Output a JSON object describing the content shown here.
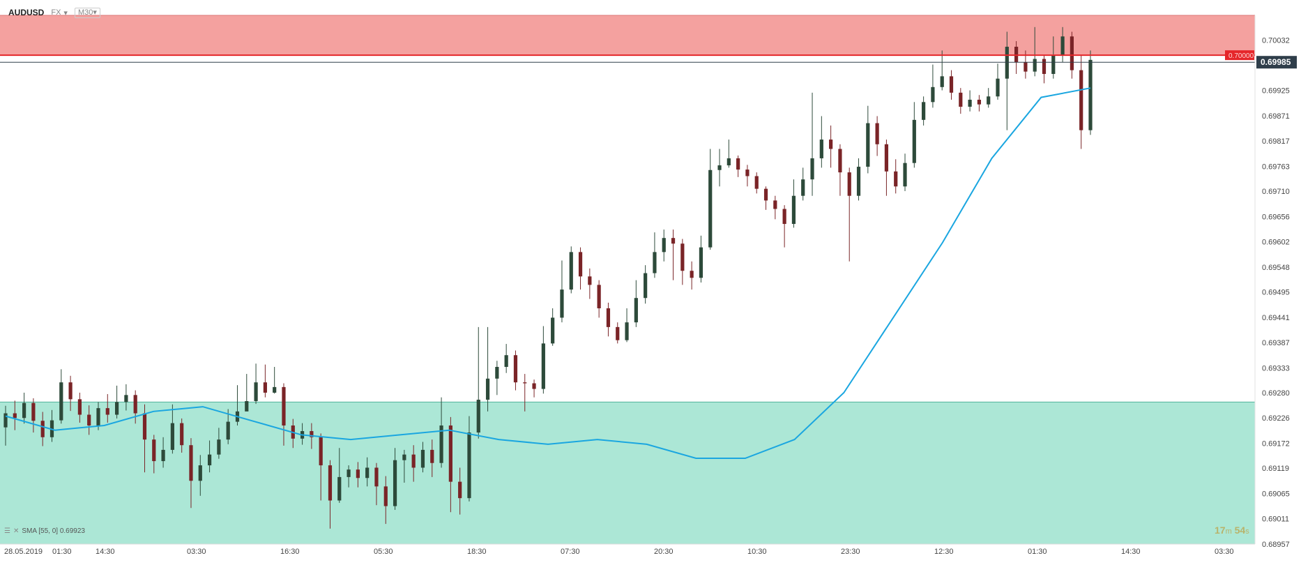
{
  "header": {
    "symbol": "AUDUSD",
    "exchange": "FX",
    "timeframe": "M30"
  },
  "indicator": {
    "label": "SMA [55, 0] 0.69923"
  },
  "countdown": {
    "minutes": "17",
    "m_unit": "m",
    "seconds": "54",
    "s_unit": "s"
  },
  "colors": {
    "resistance_zone": "#f4a19f",
    "resistance_line": "#e5262a",
    "support_zone": "#ace7d6",
    "support_line": "#4fb49a",
    "sma": "#1aa6e0",
    "bull_candle": "#2d4a3a",
    "bear_candle": "#7a2427",
    "current_price_bg": "#2f3e4a",
    "level_tag_bg": "#e5262a"
  },
  "chart_data": {
    "type": "candlestick",
    "symbol": "AUDUSD",
    "timeframe": "M30",
    "y_ticks": [
      "0.70032",
      "0.69925",
      "0.69871",
      "0.69817",
      "0.69763",
      "0.69710",
      "0.69656",
      "0.69602",
      "0.69548",
      "0.69495",
      "0.69441",
      "0.69387",
      "0.69333",
      "0.69280",
      "0.69226",
      "0.69172",
      "0.69119",
      "0.69065",
      "0.69011",
      "0.68957"
    ],
    "ylim": [
      0.68957,
      0.70085
    ],
    "x_ticks": [
      "28.05.2019",
      "01:30",
      "14:30",
      "03:30",
      "16:30",
      "05:30",
      "18:30",
      "07:30",
      "20:30",
      "10:30",
      "23:30",
      "12:30",
      "01:30",
      "14:30",
      "03:30"
    ],
    "current_price": "0.69985",
    "resistance_level": "0.70000",
    "resistance_zone": [
      0.7,
      0.70085
    ],
    "support_zone_top": 0.6926,
    "sma": {
      "period": 55,
      "value": "0.69923"
    },
    "sma_path": [
      0.6923,
      0.692,
      0.6921,
      0.6924,
      0.6925,
      0.6922,
      0.6919,
      0.6918,
      0.6919,
      0.692,
      0.6918,
      0.6917,
      0.6918,
      0.6917,
      0.6914,
      0.6914,
      0.6918,
      0.6928,
      0.6944,
      0.696,
      0.6978,
      0.6991,
      0.6993
    ],
    "candles": [
      [
        0.69206,
        0.69236,
        0.69252,
        0.69167
      ],
      [
        0.69236,
        0.69226,
        0.69263,
        0.692
      ],
      [
        0.69226,
        0.69258,
        0.6928,
        0.69214
      ],
      [
        0.69258,
        0.6922,
        0.69268,
        0.69195
      ],
      [
        0.6922,
        0.69185,
        0.69239,
        0.69166
      ],
      [
        0.69185,
        0.69221,
        0.69243,
        0.69175
      ],
      [
        0.69221,
        0.69302,
        0.6933,
        0.69214
      ],
      [
        0.69302,
        0.69266,
        0.69316,
        0.69241
      ],
      [
        0.69266,
        0.69233,
        0.6928,
        0.69216
      ],
      [
        0.69233,
        0.6921,
        0.69253,
        0.6919
      ],
      [
        0.6921,
        0.69247,
        0.6926,
        0.692
      ],
      [
        0.69247,
        0.69233,
        0.69277,
        0.69216
      ],
      [
        0.69233,
        0.6926,
        0.69295,
        0.69225
      ],
      [
        0.6926,
        0.69275,
        0.69298,
        0.69242
      ],
      [
        0.69275,
        0.69236,
        0.69285,
        0.69214
      ],
      [
        0.69236,
        0.6918,
        0.69255,
        0.6911
      ],
      [
        0.6918,
        0.69134,
        0.6919,
        0.69108
      ],
      [
        0.69134,
        0.69158,
        0.69185,
        0.6912
      ],
      [
        0.69158,
        0.69215,
        0.69255,
        0.6915
      ],
      [
        0.69215,
        0.69168,
        0.69225,
        0.69152
      ],
      [
        0.69168,
        0.69092,
        0.69183,
        0.69034
      ],
      [
        0.69092,
        0.69125,
        0.69147,
        0.6906
      ],
      [
        0.69125,
        0.69148,
        0.69178,
        0.6911
      ],
      [
        0.69148,
        0.6918,
        0.69205,
        0.69139
      ],
      [
        0.6918,
        0.69218,
        0.69245,
        0.6917
      ],
      [
        0.69218,
        0.6924,
        0.69296,
        0.6921
      ],
      [
        0.6924,
        0.69262,
        0.6932,
        0.69245
      ],
      [
        0.69262,
        0.69302,
        0.69342,
        0.69256
      ],
      [
        0.69302,
        0.6928,
        0.6934,
        0.6927
      ],
      [
        0.6928,
        0.69292,
        0.69335,
        0.69278
      ],
      [
        0.69292,
        0.6921,
        0.693,
        0.69167
      ],
      [
        0.6921,
        0.69182,
        0.69224,
        0.69162
      ],
      [
        0.69182,
        0.69198,
        0.69215,
        0.69169
      ],
      [
        0.69198,
        0.69185,
        0.69215,
        0.6916
      ],
      [
        0.69185,
        0.69125,
        0.69193,
        0.6905
      ],
      [
        0.69125,
        0.6905,
        0.69136,
        0.6899
      ],
      [
        0.6905,
        0.691,
        0.69162,
        0.69045
      ],
      [
        0.691,
        0.69116,
        0.69125,
        0.69078
      ],
      [
        0.69116,
        0.69098,
        0.69132,
        0.69078
      ],
      [
        0.69098,
        0.6912,
        0.69142,
        0.6908
      ],
      [
        0.6912,
        0.6908,
        0.6913,
        0.6904
      ],
      [
        0.6908,
        0.69038,
        0.69102,
        0.69
      ],
      [
        0.69038,
        0.69136,
        0.69162,
        0.6903
      ],
      [
        0.69136,
        0.69148,
        0.69158,
        0.69088
      ],
      [
        0.69148,
        0.6912,
        0.69168,
        0.6909
      ],
      [
        0.6912,
        0.69158,
        0.69175,
        0.6911
      ],
      [
        0.69158,
        0.6913,
        0.6918,
        0.691
      ],
      [
        0.6913,
        0.6921,
        0.6927,
        0.6912
      ],
      [
        0.6921,
        0.6909,
        0.69228,
        0.69025
      ],
      [
        0.6909,
        0.69055,
        0.6912,
        0.6902
      ],
      [
        0.69055,
        0.69195,
        0.6923,
        0.69048
      ],
      [
        0.69195,
        0.69265,
        0.6942,
        0.69182
      ],
      [
        0.69265,
        0.6931,
        0.6942,
        0.6924
      ],
      [
        0.6931,
        0.69335,
        0.69348,
        0.69275
      ],
      [
        0.69335,
        0.6936,
        0.69384,
        0.69322
      ],
      [
        0.6936,
        0.69302,
        0.6937,
        0.69285
      ],
      [
        0.69302,
        0.693,
        0.6932,
        0.6924
      ],
      [
        0.693,
        0.69288,
        0.69308,
        0.6927
      ],
      [
        0.69288,
        0.69385,
        0.69422,
        0.69278
      ],
      [
        0.69385,
        0.6944,
        0.6946,
        0.6938
      ],
      [
        0.6944,
        0.695,
        0.69562,
        0.6943
      ],
      [
        0.695,
        0.6958,
        0.69592,
        0.69492
      ],
      [
        0.6958,
        0.69528,
        0.6959,
        0.695
      ],
      [
        0.69528,
        0.6951,
        0.69545,
        0.6948
      ],
      [
        0.6951,
        0.6946,
        0.6952,
        0.6944
      ],
      [
        0.6946,
        0.6942,
        0.69472,
        0.694
      ],
      [
        0.6942,
        0.69392,
        0.6943,
        0.69385
      ],
      [
        0.69392,
        0.6943,
        0.6946,
        0.69388
      ],
      [
        0.6943,
        0.69482,
        0.6952,
        0.6942
      ],
      [
        0.69482,
        0.69535,
        0.69552,
        0.6947
      ],
      [
        0.69535,
        0.6958,
        0.69622,
        0.69525
      ],
      [
        0.6958,
        0.6961,
        0.69628,
        0.6956
      ],
      [
        0.6961,
        0.69598,
        0.69628,
        0.6952
      ],
      [
        0.69598,
        0.6954,
        0.69608,
        0.6951
      ],
      [
        0.6954,
        0.69525,
        0.6956,
        0.695
      ],
      [
        0.69525,
        0.6959,
        0.69615,
        0.69515
      ],
      [
        0.6959,
        0.69755,
        0.698,
        0.69585
      ],
      [
        0.69755,
        0.69765,
        0.698,
        0.6972
      ],
      [
        0.69765,
        0.6978,
        0.6982,
        0.6976
      ],
      [
        0.6978,
        0.69756,
        0.69786,
        0.6974
      ],
      [
        0.69756,
        0.69742,
        0.69766,
        0.6972
      ],
      [
        0.69742,
        0.69715,
        0.6975,
        0.69705
      ],
      [
        0.69715,
        0.6969,
        0.6972,
        0.6967
      ],
      [
        0.6969,
        0.69672,
        0.697,
        0.6965
      ],
      [
        0.69672,
        0.6964,
        0.6968,
        0.6959
      ],
      [
        0.6964,
        0.697,
        0.69735,
        0.69632
      ],
      [
        0.697,
        0.69735,
        0.6976,
        0.6969
      ],
      [
        0.69735,
        0.6978,
        0.6992,
        0.697
      ],
      [
        0.6978,
        0.6982,
        0.6987,
        0.6976
      ],
      [
        0.6982,
        0.698,
        0.6985,
        0.6976
      ],
      [
        0.698,
        0.6975,
        0.6981,
        0.697
      ],
      [
        0.6975,
        0.697,
        0.6976,
        0.6956
      ],
      [
        0.697,
        0.69762,
        0.6978,
        0.6969
      ],
      [
        0.69762,
        0.69855,
        0.69892,
        0.69748
      ],
      [
        0.69855,
        0.6981,
        0.6987,
        0.69785
      ],
      [
        0.6981,
        0.69752,
        0.6982,
        0.697
      ],
      [
        0.69752,
        0.6972,
        0.69778,
        0.69705
      ],
      [
        0.6972,
        0.6977,
        0.6979,
        0.6971
      ],
      [
        0.6977,
        0.69862,
        0.699,
        0.6976
      ],
      [
        0.69862,
        0.699,
        0.69912,
        0.6985
      ],
      [
        0.699,
        0.69932,
        0.6998,
        0.69888
      ],
      [
        0.69932,
        0.69955,
        0.7001,
        0.69925
      ],
      [
        0.69955,
        0.6992,
        0.69968,
        0.69905
      ],
      [
        0.6992,
        0.6989,
        0.6993,
        0.69875
      ],
      [
        0.6989,
        0.69905,
        0.69925,
        0.6988
      ],
      [
        0.69905,
        0.69895,
        0.69915,
        0.6988
      ],
      [
        0.69895,
        0.69912,
        0.6993,
        0.69888
      ],
      [
        0.69912,
        0.6995,
        0.69982,
        0.69905
      ],
      [
        0.6995,
        0.70018,
        0.7005,
        0.6984
      ],
      [
        0.70018,
        0.69985,
        0.7003,
        0.6996
      ],
      [
        0.69985,
        0.69965,
        0.7001,
        0.6995
      ],
      [
        0.69965,
        0.69992,
        0.7006,
        0.69955
      ],
      [
        0.69992,
        0.6996,
        0.7,
        0.6994
      ],
      [
        0.6996,
        0.7,
        0.7004,
        0.6995
      ],
      [
        0.7,
        0.7004,
        0.7006,
        0.69985
      ],
      [
        0.7004,
        0.69968,
        0.7005,
        0.6995
      ],
      [
        0.69968,
        0.6984,
        0.7,
        0.698
      ],
      [
        0.6984,
        0.6999,
        0.7001,
        0.6983
      ]
    ]
  }
}
